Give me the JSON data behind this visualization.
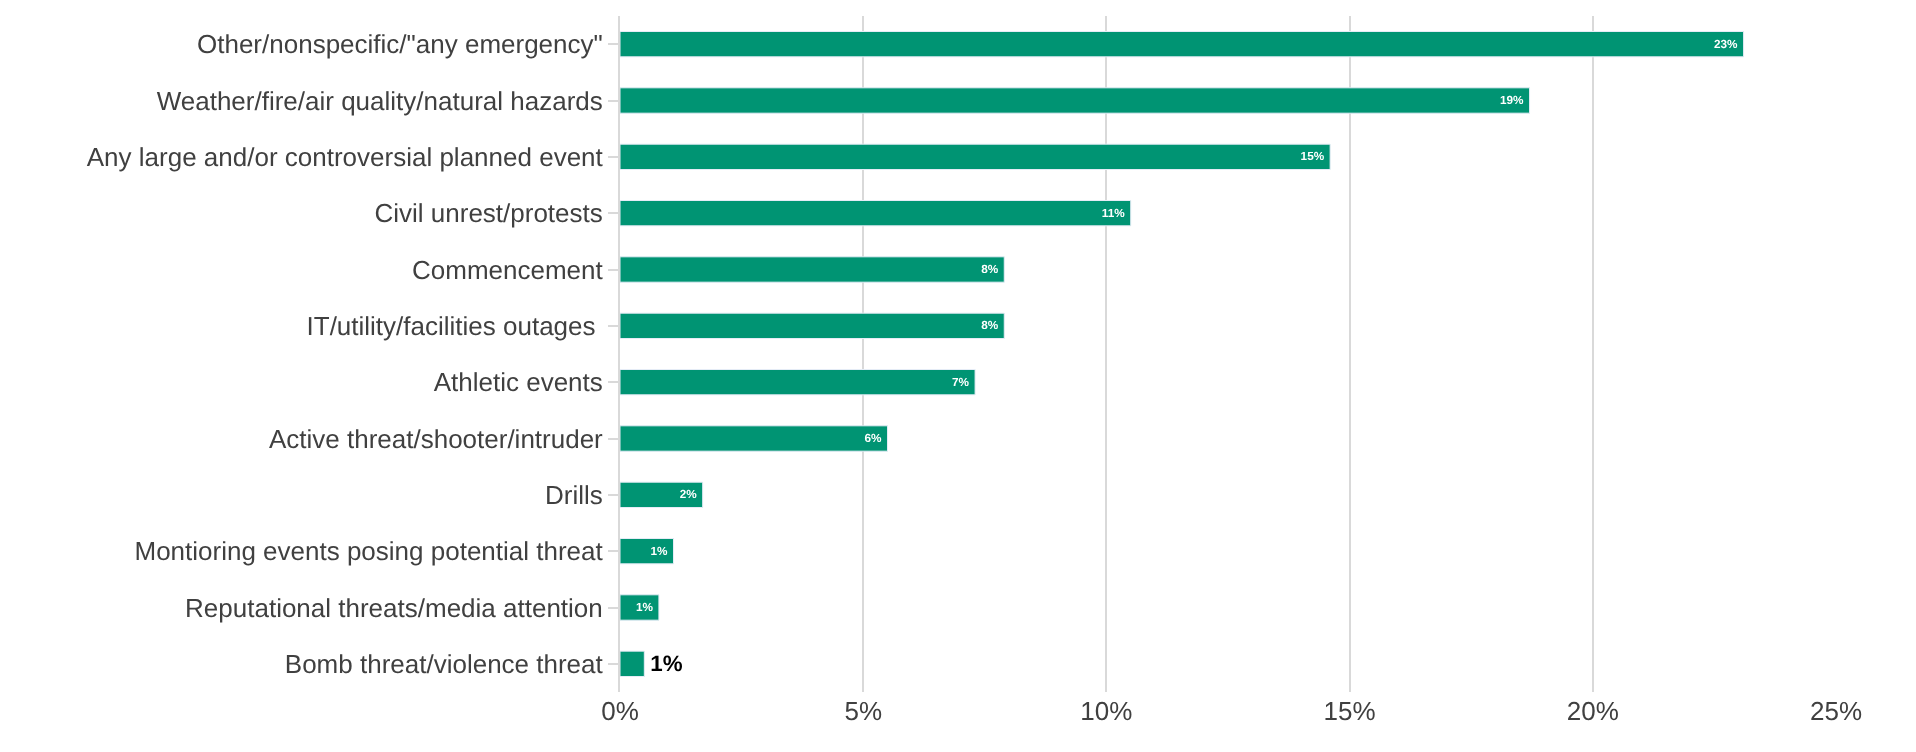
{
  "chart_data": {
    "type": "bar",
    "orientation": "horizontal",
    "categories": [
      "Other/nonspecific/\"any emergency\"",
      "Weather/fire/air quality/natural hazards",
      "Any large and/or controversial planned event",
      "Civil unrest/protests",
      "Commencement",
      "IT/utility/facilities outages ",
      "Athletic events",
      "Active threat/shooter/intruder",
      "Drills",
      "Montioring events posing potential threat",
      "Reputational threats/media attention",
      "Bomb threat/violence threat"
    ],
    "values": [
      23.1,
      18.7,
      14.6,
      10.5,
      7.9,
      7.9,
      7.3,
      5.5,
      1.7,
      1.1,
      0.8,
      0.5
    ],
    "value_labels": [
      "23%",
      "19%",
      "15%",
      "11%",
      "8%",
      "8%",
      "7%",
      "6%",
      "2%",
      "1%",
      "1%",
      "1%"
    ],
    "color": "#009473",
    "xlim": [
      0,
      25
    ],
    "xticks": [
      {
        "value": 0,
        "label": "0%"
      },
      {
        "value": 5,
        "label": "5%"
      },
      {
        "value": 10,
        "label": "10%"
      },
      {
        "value": 15,
        "label": "15%"
      },
      {
        "value": 20,
        "label": "20%"
      },
      {
        "value": 25,
        "label": "25%"
      }
    ],
    "grid": "x",
    "legend": false
  }
}
